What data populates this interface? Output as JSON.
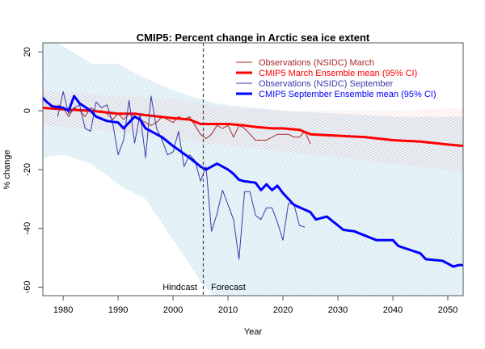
{
  "chart_data": {
    "type": "line",
    "title": "CMIP5: Percent change in Arctic sea ice extent",
    "xlabel": "Year",
    "ylabel": "% change",
    "xlim": [
      1976.3,
      2052.8
    ],
    "ylim": [
      -62.9,
      23.1
    ],
    "xticks": [
      1980,
      1990,
      2000,
      2010,
      2020,
      2030,
      2040,
      2050
    ],
    "yticks": [
      20,
      0,
      -20,
      -40,
      -60
    ],
    "grid": false,
    "legend_position": "top-right",
    "divider": {
      "x": 2005.5,
      "left_label": "Hindcast",
      "right_label": "Forecast"
    },
    "bands": [
      {
        "name": "CMIP5 September Ensemble 95% CI",
        "color": "#add8e6",
        "x": [
          1976,
          1980,
          1985,
          1990,
          1995,
          2000,
          2003,
          2005,
          2008,
          2010,
          2020,
          2030,
          2040,
          2053
        ],
        "upper": [
          27,
          22,
          16,
          16,
          11,
          7,
          5,
          4,
          2.5,
          2,
          0,
          -1,
          -2,
          -2
        ],
        "lower": [
          -16,
          -15,
          -18,
          -25,
          -30,
          -44,
          -52,
          -58,
          -64,
          -64,
          -64,
          -64,
          -64,
          -64
        ]
      },
      {
        "name": "CMIP5 March Ensemble 95% CI",
        "color": "#f4a0a8",
        "x": [
          1976,
          1990,
          2000,
          2010,
          2020,
          2030,
          2040,
          2053
        ],
        "upper": [
          7,
          5,
          4,
          1,
          0,
          0,
          0,
          1
        ],
        "lower": [
          -5,
          -7,
          -10,
          -12,
          -14,
          -16,
          -18,
          -21
        ]
      }
    ],
    "series": [
      {
        "name": "Observations (NSIDC) March",
        "color": "#a52a2a",
        "width": 1,
        "x": [
          1979,
          1980,
          1981,
          1982,
          1983,
          1984,
          1985,
          1986,
          1987,
          1988,
          1989,
          1990,
          1991,
          1992,
          1993,
          1994,
          1995,
          1996,
          1997,
          1998,
          1999,
          2000,
          2001,
          2002,
          2003,
          2004,
          2005,
          2006,
          2007,
          2008,
          2009,
          2010,
          2011,
          2012,
          2013,
          2014,
          2015,
          2016,
          2017,
          2018,
          2019,
          2020,
          2021,
          2022,
          2023,
          2024,
          2025
        ],
        "y": [
          2,
          1,
          -2,
          1,
          0,
          -2,
          1,
          0,
          0,
          -1,
          -3,
          -1,
          -3,
          -1,
          -2,
          -3,
          -4,
          -5,
          -4,
          -2,
          -3,
          -4,
          -2,
          -3,
          -2,
          -5,
          -8,
          -9.5,
          -8,
          -5,
          -6,
          -5,
          -9,
          -5,
          -6,
          -8,
          -10,
          -10,
          -10,
          -9,
          -8,
          -8,
          -8,
          -9,
          -9,
          -7,
          -11.3
        ]
      },
      {
        "name": "CMIP5 March Ensemble mean (95% CI)",
        "color": "#ff0000",
        "width": 3,
        "x": [
          1976,
          1980,
          1985,
          1990,
          1993,
          1995,
          2000,
          2003,
          2005,
          2008,
          2010,
          2013,
          2015,
          2018,
          2020,
          2023,
          2025,
          2030,
          2035,
          2040,
          2045,
          2050,
          2053
        ],
        "y": [
          1,
          0.5,
          0,
          -1,
          -1,
          -1.5,
          -2.5,
          -3,
          -4.5,
          -4.5,
          -4.5,
          -5,
          -5.5,
          -6,
          -6,
          -6.5,
          -8,
          -8.5,
          -9,
          -10,
          -10.5,
          -11.5,
          -12
        ]
      },
      {
        "name": "Observations (NSIDC) September",
        "color": "#3a3aaa",
        "width": 1,
        "x": [
          1979,
          1980,
          1981,
          1982,
          1983,
          1984,
          1985,
          1986,
          1987,
          1988,
          1989,
          1990,
          1991,
          1992,
          1993,
          1994,
          1995,
          1996,
          1997,
          1998,
          1999,
          2000,
          2001,
          2002,
          2003,
          2004,
          2005,
          2006,
          2007,
          2008,
          2009,
          2010,
          2011,
          2012,
          2013,
          2014,
          2015,
          2016,
          2017,
          2018,
          2019,
          2020,
          2021,
          2022,
          2023,
          2024
        ],
        "y": [
          -2,
          6.5,
          -1,
          1,
          2,
          -6,
          -7,
          3,
          1,
          2,
          -4,
          -15,
          -10,
          3.5,
          -11,
          -1,
          -16,
          5,
          -6,
          -10,
          -15,
          -14,
          -7,
          -19,
          -15,
          -17,
          -24,
          -19,
          -41,
          -35,
          -27,
          -32,
          -37,
          -50.5,
          -27.5,
          -27.5,
          -35.6,
          -37,
          -33,
          -33,
          -38,
          -44,
          -31.5,
          -31.8,
          -39,
          -39.6
        ]
      },
      {
        "name": "CMIP5 September Ensemble mean (95% CI)",
        "color": "#0000ff",
        "width": 3,
        "x": [
          1976,
          1977,
          1978,
          1980,
          1981,
          1982,
          1983,
          1985,
          1986,
          1988,
          1990,
          1991,
          1993,
          1994,
          1995,
          1998,
          2000,
          2003,
          2005,
          2006,
          2008,
          2010,
          2011,
          2012,
          2013,
          2015,
          2016,
          2017,
          2018,
          2019,
          2020,
          2022,
          2025,
          2026,
          2028,
          2031,
          2033,
          2035,
          2037,
          2040,
          2041,
          2045,
          2046,
          2049,
          2051,
          2052,
          2053
        ],
        "y": [
          5,
          3,
          1.5,
          1,
          0,
          5,
          2.5,
          0,
          -2,
          -3.5,
          -4,
          -6,
          -2,
          -3,
          -6,
          -9,
          -12,
          -16,
          -19,
          -20,
          -18,
          -20,
          -21.5,
          -23.5,
          -24,
          -24.5,
          -27,
          -25,
          -27,
          -25.5,
          -28,
          -32,
          -34.5,
          -37,
          -36,
          -40.5,
          -41,
          -42.5,
          -44,
          -44,
          -46,
          -48.5,
          -50.5,
          -51,
          -53,
          -52.5,
          -52.5
        ]
      }
    ]
  }
}
